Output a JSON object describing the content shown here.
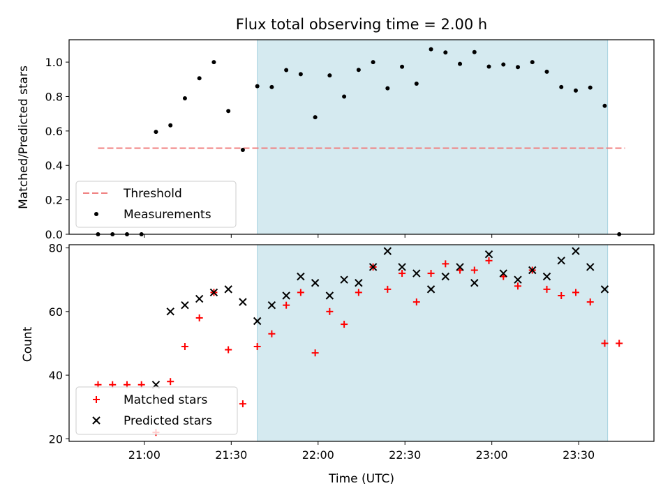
{
  "chart_data": [
    {
      "type": "scatter",
      "title": "Flux total observing time = 2.00 h",
      "xlabel": "",
      "ylabel": "Matched/Predicted stars",
      "ylim": [
        0.0,
        1.13
      ],
      "yticks": [
        "0.0",
        "0.2",
        "0.4",
        "0.6",
        "0.8",
        "1.0"
      ],
      "grid": false,
      "legend_position": "lower-left",
      "shaded_interval": [
        "21:39",
        "23:40"
      ],
      "shade_color": "#d5eaf0",
      "threshold": {
        "name": "Threshold",
        "y": 0.5,
        "x_range": [
          "20:44",
          "23:46"
        ],
        "color": "#f08080"
      },
      "series": [
        {
          "name": "Measurements",
          "color": "#000000",
          "x": [
            "20:44",
            "20:49",
            "20:54",
            "20:59",
            "21:04",
            "21:09",
            "21:14",
            "21:19",
            "21:24",
            "21:29",
            "21:34",
            "21:39",
            "21:44",
            "21:49",
            "21:54",
            "21:59",
            "22:04",
            "22:09",
            "22:14",
            "22:19",
            "22:24",
            "22:29",
            "22:34",
            "22:39",
            "22:44",
            "22:49",
            "22:54",
            "22:59",
            "23:04",
            "23:09",
            "23:14",
            "23:19",
            "23:24",
            "23:29",
            "23:34",
            "23:39",
            "23:44"
          ],
          "y": [
            0.0,
            0.0,
            0.0,
            0.0,
            0.595,
            0.633,
            0.79,
            0.906,
            1.0,
            0.716,
            0.49,
            0.86,
            0.855,
            0.954,
            0.93,
            0.68,
            0.923,
            0.8,
            0.955,
            1.0,
            0.848,
            0.973,
            0.875,
            1.075,
            1.056,
            0.99,
            1.058,
            0.974,
            0.986,
            0.971,
            1.0,
            0.944,
            0.855,
            0.835,
            0.852,
            0.746,
            0.0
          ]
        }
      ]
    },
    {
      "type": "scatter",
      "xlabel": "Time (UTC)",
      "ylabel": "Count",
      "ylim": [
        19.2,
        81.0
      ],
      "yticks": [
        "20",
        "40",
        "60",
        "80"
      ],
      "xticks": [
        "21:00",
        "21:30",
        "22:00",
        "22:30",
        "23:00",
        "23:30"
      ],
      "grid": false,
      "legend_position": "lower-left",
      "shaded_interval": [
        "21:39",
        "23:40"
      ],
      "series": [
        {
          "name": "Matched stars",
          "marker": "plus",
          "color": "#ff0000",
          "x": [
            "20:44",
            "20:49",
            "20:54",
            "20:59",
            "21:04",
            "21:09",
            "21:14",
            "21:19",
            "21:24",
            "21:29",
            "21:34",
            "21:39",
            "21:44",
            "21:49",
            "21:54",
            "21:59",
            "22:04",
            "22:09",
            "22:14",
            "22:19",
            "22:24",
            "22:29",
            "22:34",
            "22:39",
            "22:44",
            "22:49",
            "22:54",
            "22:59",
            "23:04",
            "23:09",
            "23:14",
            "23:19",
            "23:24",
            "23:29",
            "23:34",
            "23:39",
            "23:44"
          ],
          "y": [
            37,
            37,
            37,
            37,
            22,
            38,
            49,
            58,
            66,
            48,
            31,
            49,
            53,
            62,
            66,
            47,
            60,
            56,
            66,
            74,
            67,
            72,
            63,
            72,
            75,
            73,
            73,
            76,
            71,
            68,
            73,
            67,
            65,
            66,
            63,
            50,
            50
          ]
        },
        {
          "name": "Predicted stars",
          "marker": "x",
          "color": "#000000",
          "x": [
            "21:04",
            "21:09",
            "21:14",
            "21:19",
            "21:24",
            "21:29",
            "21:34",
            "21:39",
            "21:44",
            "21:49",
            "21:54",
            "21:59",
            "22:04",
            "22:09",
            "22:14",
            "22:19",
            "22:24",
            "22:29",
            "22:34",
            "22:39",
            "22:44",
            "22:49",
            "22:54",
            "22:59",
            "23:04",
            "23:09",
            "23:14",
            "23:19",
            "23:24",
            "23:29",
            "23:34",
            "23:39"
          ],
          "y": [
            37,
            60,
            62,
            64,
            66,
            67,
            63,
            57,
            62,
            65,
            71,
            69,
            65,
            70,
            69,
            74,
            79,
            74,
            72,
            67,
            71,
            74,
            69,
            78,
            72,
            70,
            73,
            71,
            76,
            79,
            74,
            67
          ]
        }
      ]
    }
  ]
}
